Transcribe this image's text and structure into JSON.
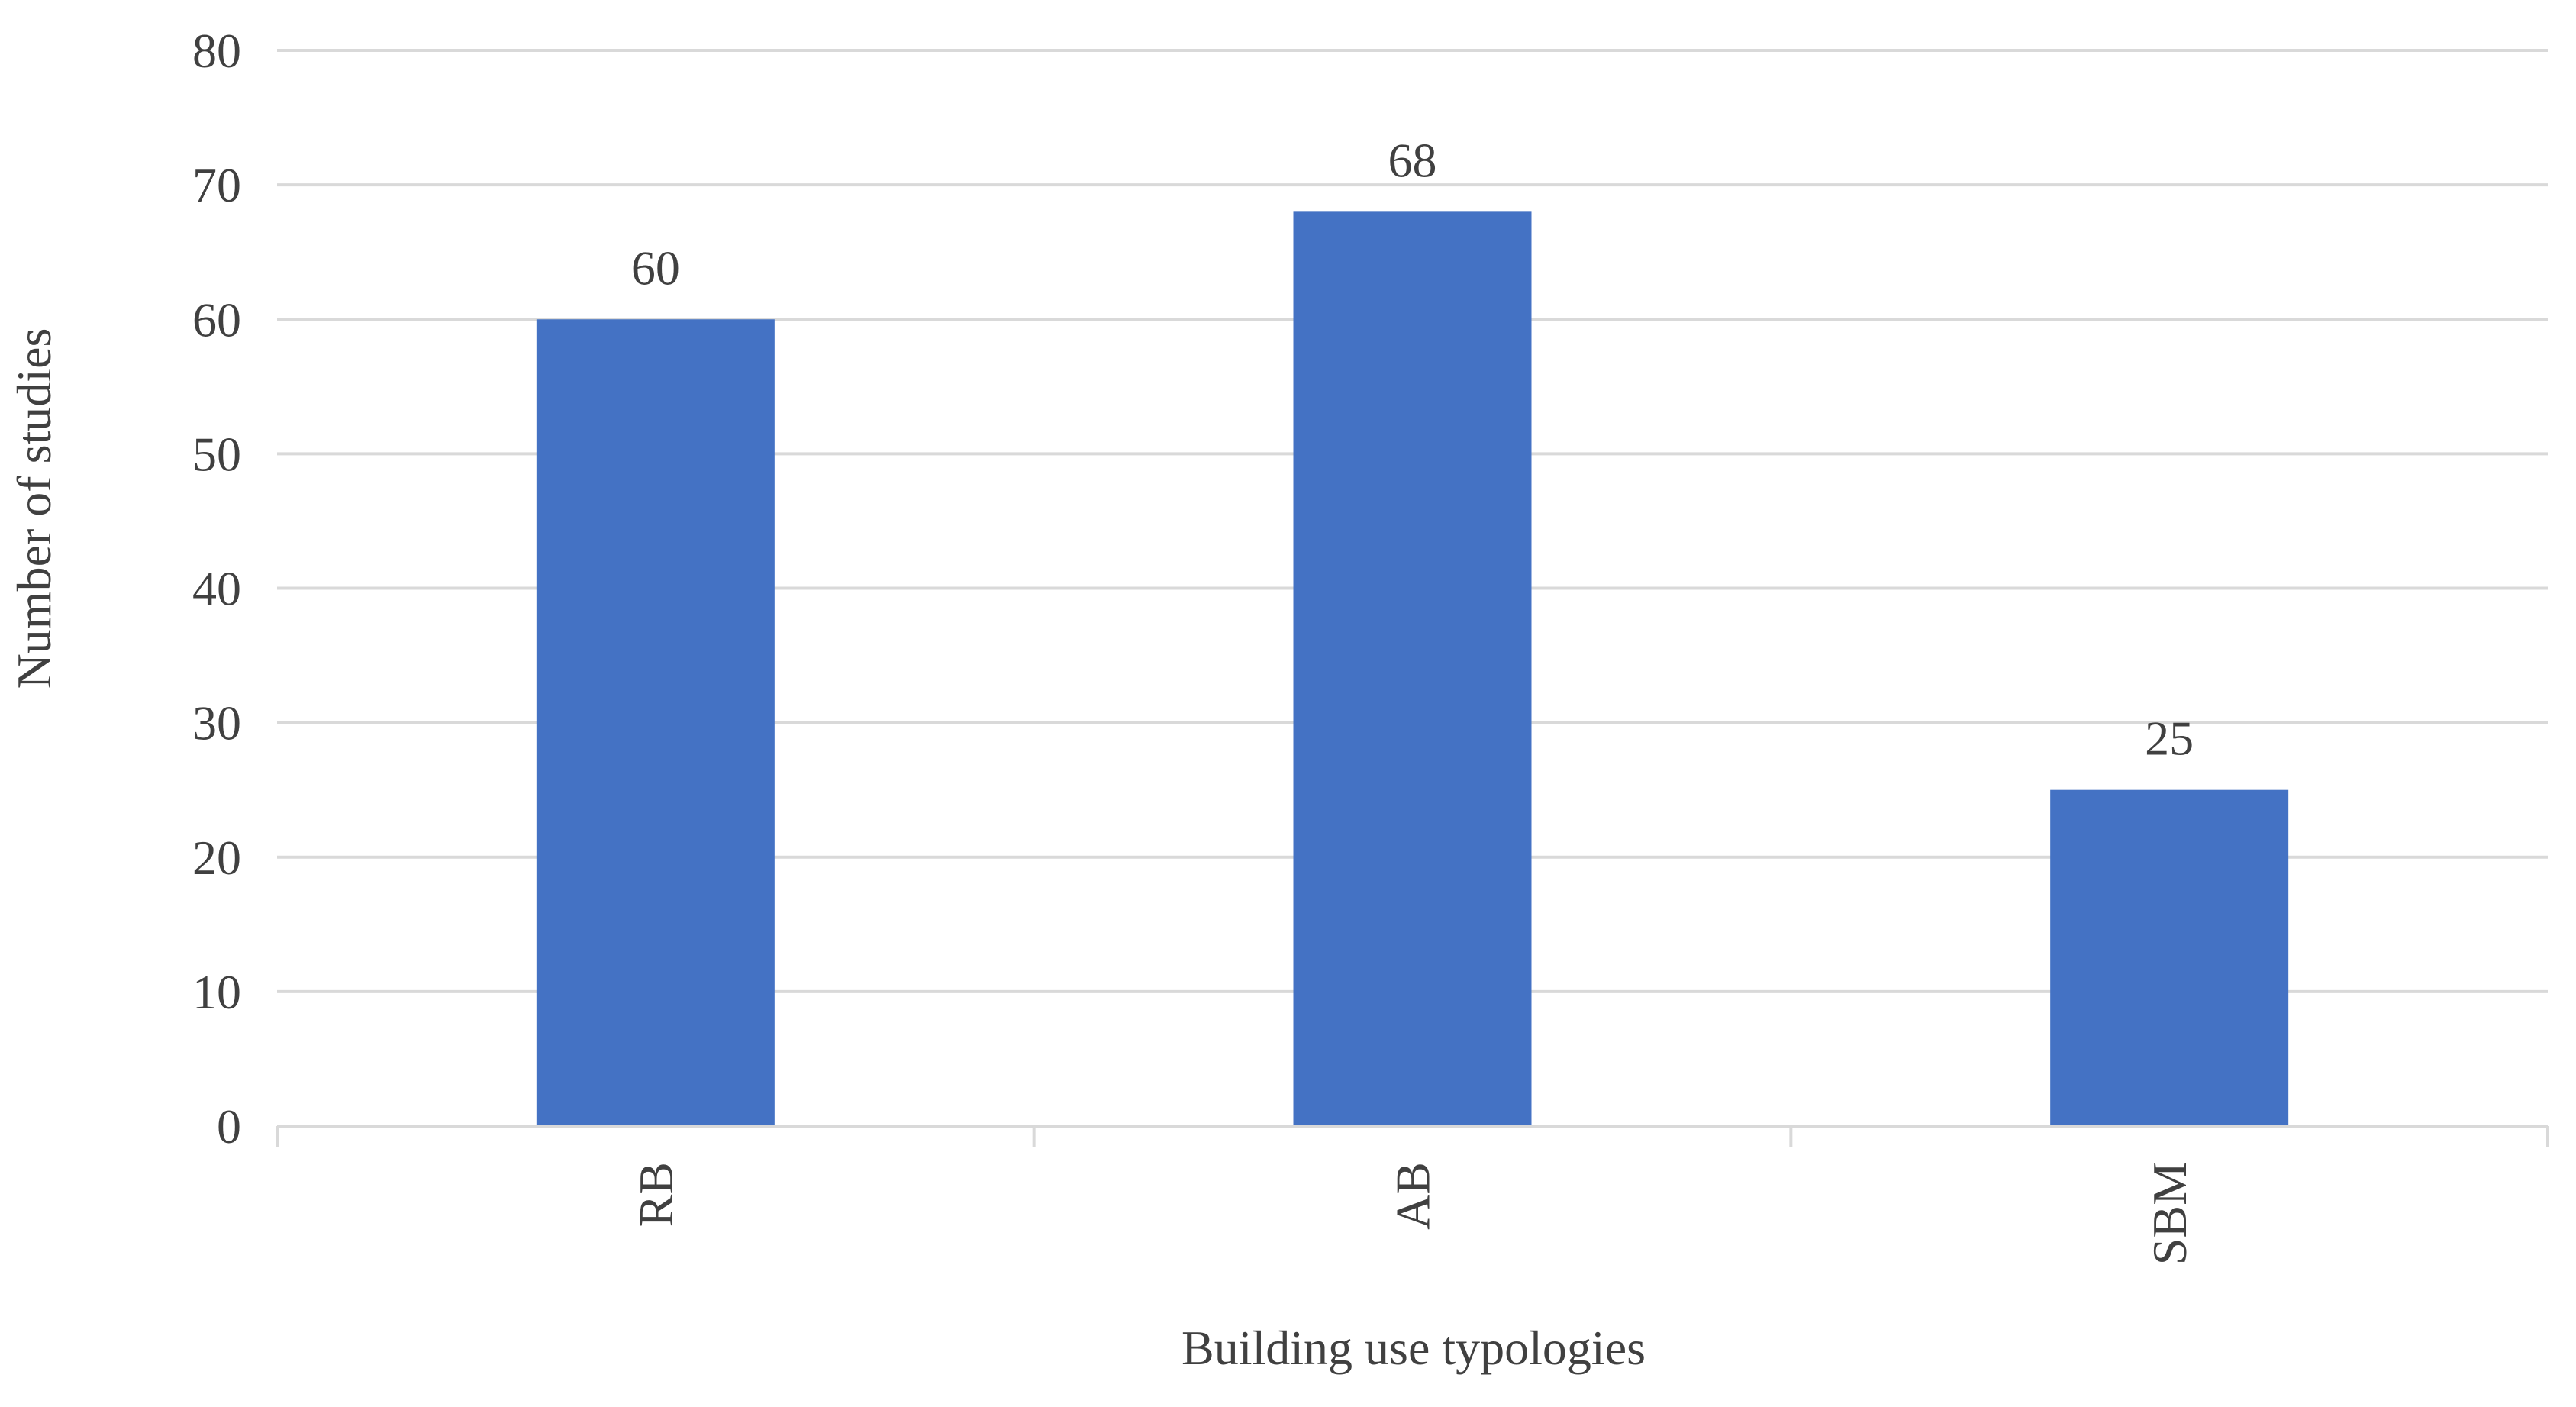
{
  "chart_data": {
    "type": "bar",
    "title": "",
    "xlabel": "Building use typologies",
    "ylabel": "Number of studies",
    "categories": [
      "RB",
      "AB",
      "SBM"
    ],
    "values": [
      60,
      68,
      25
    ],
    "data_labels": [
      "60",
      "68",
      "25"
    ],
    "ylim": [
      0,
      80
    ],
    "yticks": [
      0,
      10,
      20,
      30,
      40,
      50,
      60,
      70,
      80
    ],
    "ytick_labels": [
      "0",
      "10",
      "20",
      "30",
      "40",
      "50",
      "60",
      "70",
      "80"
    ],
    "grid": true,
    "legend": "none",
    "x_tick_label_rotation": "vertical",
    "colors": {
      "bar": "#4472C4",
      "gridline": "#D9D9D9",
      "text": "#404040"
    }
  }
}
